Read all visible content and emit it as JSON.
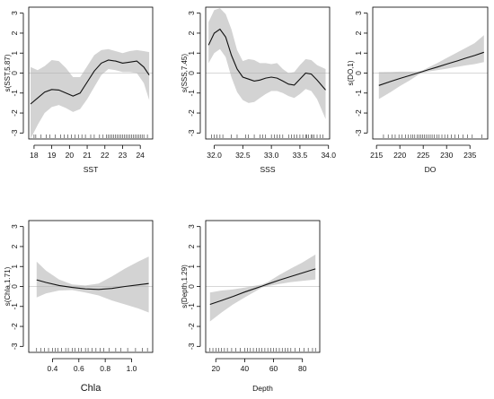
{
  "chart_data": [
    {
      "type": "line",
      "xlabel": "SST",
      "ylabel": "s(SST,5.87)",
      "xlim": [
        17.7,
        24.7
      ],
      "ylim": [
        -3.3,
        3.3
      ],
      "xticks": [
        18,
        19,
        20,
        21,
        22,
        23,
        24
      ],
      "yticks": [
        -3,
        -2,
        -1,
        0,
        1,
        2,
        3
      ],
      "zero_line": true,
      "x": [
        17.8,
        18.2,
        18.6,
        19.0,
        19.4,
        19.8,
        20.2,
        20.6,
        21.0,
        21.4,
        21.8,
        22.2,
        22.6,
        23.0,
        23.4,
        23.8,
        24.2,
        24.5
      ],
      "fit": [
        -1.55,
        -1.25,
        -0.95,
        -0.82,
        -0.85,
        -1.0,
        -1.15,
        -1.0,
        -0.45,
        0.1,
        0.5,
        0.65,
        0.6,
        0.5,
        0.55,
        0.6,
        0.3,
        -0.1
      ],
      "lower": [
        -3.3,
        -2.6,
        -2.0,
        -1.7,
        -1.6,
        -1.75,
        -1.95,
        -1.8,
        -1.3,
        -0.7,
        -0.1,
        0.2,
        0.15,
        0.05,
        0.05,
        0.0,
        -0.5,
        -1.35
      ],
      "upper": [
        0.3,
        0.15,
        0.35,
        0.65,
        0.6,
        0.25,
        -0.2,
        -0.2,
        0.35,
        0.9,
        1.15,
        1.2,
        1.1,
        1.0,
        1.1,
        1.15,
        1.1,
        1.05
      ],
      "rug": [
        18.0,
        18.1,
        18.4,
        18.7,
        18.9,
        19.2,
        19.5,
        19.7,
        19.9,
        20.1,
        20.3,
        20.5,
        20.7,
        20.9,
        21.2,
        21.4,
        21.7,
        21.9,
        22.1,
        22.2,
        22.3,
        22.4,
        22.5,
        22.6,
        22.7,
        22.8,
        22.9,
        23.0,
        23.1,
        23.2,
        23.3,
        23.4,
        23.5,
        23.6,
        23.7,
        23.8,
        23.9,
        24.0,
        24.1,
        24.2,
        24.4
      ]
    },
    {
      "type": "line",
      "xlabel": "SSS",
      "ylabel": "s(SSS,7.45)",
      "xlim": [
        31.85,
        34.02
      ],
      "ylim": [
        -3.3,
        3.3
      ],
      "xticks": [
        32.0,
        32.5,
        33.0,
        33.5,
        34.0
      ],
      "yticks": [
        -3,
        -2,
        -1,
        0,
        1,
        2,
        3
      ],
      "zero_line": true,
      "x": [
        31.9,
        32.0,
        32.1,
        32.2,
        32.3,
        32.4,
        32.5,
        32.6,
        32.7,
        32.8,
        32.9,
        33.0,
        33.1,
        33.2,
        33.3,
        33.4,
        33.5,
        33.6,
        33.7,
        33.8,
        33.95
      ],
      "fit": [
        1.4,
        2.0,
        2.2,
        1.8,
        0.9,
        0.2,
        -0.2,
        -0.3,
        -0.4,
        -0.35,
        -0.25,
        -0.2,
        -0.25,
        -0.4,
        -0.55,
        -0.6,
        -0.3,
        0.0,
        -0.05,
        -0.35,
        -0.85
      ],
      "lower": [
        0.5,
        1.0,
        1.2,
        0.8,
        -0.2,
        -0.95,
        -1.35,
        -1.5,
        -1.45,
        -1.25,
        -1.05,
        -0.9,
        -0.9,
        -1.0,
        -1.15,
        -1.25,
        -1.05,
        -0.8,
        -0.9,
        -1.3,
        -2.3
      ],
      "upper": [
        2.55,
        3.15,
        3.25,
        2.95,
        2.2,
        1.15,
        0.6,
        0.7,
        0.65,
        0.5,
        0.5,
        0.45,
        0.5,
        0.2,
        0.0,
        0.05,
        0.4,
        0.7,
        0.65,
        0.4,
        0.2
      ],
      "rug": [
        31.95,
        32.0,
        32.05,
        32.1,
        32.15,
        32.3,
        32.4,
        32.55,
        32.6,
        32.7,
        32.8,
        32.85,
        32.9,
        33.0,
        33.05,
        33.1,
        33.15,
        33.2,
        33.3,
        33.35,
        33.4,
        33.45,
        33.5,
        33.55,
        33.6,
        33.62,
        33.65,
        33.7,
        33.72,
        33.75,
        33.8,
        33.85,
        33.9
      ]
    },
    {
      "type": "line",
      "xlabel": "DO",
      "ylabel": "s(DO,1)",
      "xlim": [
        214.2,
        238.8
      ],
      "ylim": [
        -3.3,
        3.3
      ],
      "xticks": [
        215,
        220,
        225,
        230,
        235
      ],
      "yticks": [
        -3,
        -2,
        -1,
        0,
        1,
        2,
        3
      ],
      "zero_line": true,
      "x": [
        215.5,
        218.0,
        220.0,
        222.0,
        224.0,
        224.8,
        226.0,
        228.0,
        230.0,
        232.0,
        234.0,
        236.0,
        238.0
      ],
      "fit": [
        -0.62,
        -0.42,
        -0.27,
        -0.13,
        0.02,
        0.07,
        0.16,
        0.3,
        0.45,
        0.59,
        0.74,
        0.88,
        1.04
      ],
      "lower": [
        -1.3,
        -0.95,
        -0.65,
        -0.38,
        -0.08,
        0.0,
        0.07,
        0.15,
        0.22,
        0.3,
        0.38,
        0.45,
        0.55
      ],
      "upper": [
        0.05,
        0.06,
        0.07,
        0.07,
        0.08,
        0.12,
        0.27,
        0.5,
        0.75,
        1.0,
        1.25,
        1.5,
        1.9
      ],
      "rug": [
        216.5,
        217.5,
        218.3,
        219.0,
        219.8,
        220.5,
        221.2,
        221.8,
        222.3,
        222.8,
        223.2,
        223.7,
        224.1,
        224.5,
        224.9,
        225.3,
        225.7,
        226.1,
        226.5,
        226.9,
        227.4,
        227.9,
        228.4,
        229.0,
        229.6,
        230.3,
        231.0,
        231.8,
        232.6,
        233.5,
        234.5,
        235.5,
        237.5
      ]
    },
    {
      "type": "line",
      "xlabel": "Chla",
      "ylabel": "s(Chla,1.71)",
      "xlim": [
        0.22,
        1.16
      ],
      "ylim": [
        -3.3,
        3.3
      ],
      "xticks": [
        0.4,
        0.6,
        0.8,
        1.0
      ],
      "yticks": [
        -3,
        -2,
        -1,
        0,
        1,
        2,
        3
      ],
      "zero_line": true,
      "x": [
        0.28,
        0.35,
        0.45,
        0.55,
        0.65,
        0.75,
        0.85,
        0.95,
        1.05,
        1.13
      ],
      "fit": [
        0.33,
        0.2,
        0.05,
        -0.05,
        -0.12,
        -0.15,
        -0.1,
        0.0,
        0.08,
        0.15
      ],
      "lower": [
        -0.55,
        -0.35,
        -0.2,
        -0.18,
        -0.3,
        -0.45,
        -0.7,
        -0.9,
        -1.1,
        -1.3
      ],
      "upper": [
        1.25,
        0.8,
        0.35,
        0.1,
        0.05,
        0.15,
        0.5,
        0.9,
        1.25,
        1.5
      ],
      "rug": [
        0.28,
        0.31,
        0.34,
        0.37,
        0.4,
        0.42,
        0.44,
        0.47,
        0.5,
        0.52,
        0.55,
        0.57,
        0.6,
        0.62,
        0.65,
        0.67,
        0.7,
        0.73,
        0.76,
        0.79,
        0.83,
        0.88,
        0.92,
        0.97,
        1.03,
        1.08,
        1.12
      ]
    },
    {
      "type": "line",
      "xlabel": "Depth",
      "ylabel": "s(Depth,1.29)",
      "xlim": [
        13,
        92
      ],
      "ylim": [
        -3.3,
        3.3
      ],
      "xticks": [
        20,
        40,
        60,
        80
      ],
      "yticks": [
        -3,
        -2,
        -1,
        0,
        1,
        2,
        3
      ],
      "zero_line": true,
      "x": [
        16,
        24,
        32,
        40,
        48,
        52,
        56,
        64,
        72,
        80,
        89
      ],
      "fit": [
        -0.9,
        -0.7,
        -0.5,
        -0.28,
        -0.08,
        0.02,
        0.12,
        0.32,
        0.5,
        0.68,
        0.88
      ],
      "lower": [
        -1.75,
        -1.3,
        -0.9,
        -0.55,
        -0.22,
        -0.05,
        0.02,
        0.12,
        0.22,
        0.28,
        0.35
      ],
      "upper": [
        -0.3,
        -0.2,
        -0.15,
        -0.06,
        0.05,
        0.1,
        0.22,
        0.58,
        0.9,
        1.2,
        1.6
      ],
      "rug": [
        16,
        18,
        20,
        22,
        24,
        26,
        28,
        31,
        34,
        37,
        40,
        42,
        44,
        46,
        48,
        50,
        52,
        54,
        56,
        58,
        60,
        62,
        64,
        66,
        68,
        70,
        72,
        75,
        78,
        81,
        84,
        87,
        89
      ]
    }
  ]
}
